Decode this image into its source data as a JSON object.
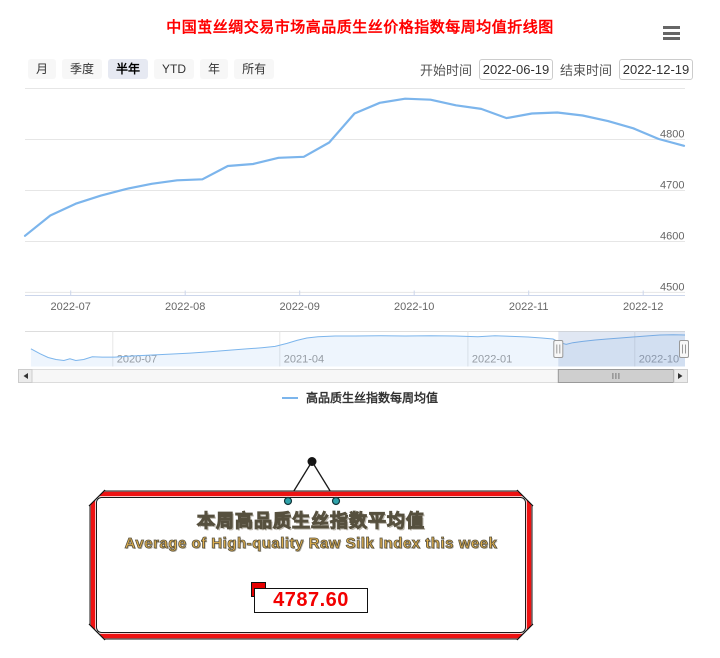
{
  "page": {
    "title": "中国茧丝绸交易市场高品质生丝价格指数每周均值折线图",
    "title_color": "#ff0000"
  },
  "menu": {
    "icon": "hamburger-icon"
  },
  "toolbar": {
    "range_buttons": [
      {
        "label": "月",
        "selected": false
      },
      {
        "label": "季度",
        "selected": false
      },
      {
        "label": "半年",
        "selected": true
      },
      {
        "label": "YTD",
        "selected": false
      },
      {
        "label": "年",
        "selected": false
      },
      {
        "label": "所有",
        "selected": false
      }
    ],
    "start_label": "开始时间",
    "start_value": "2022-06-19",
    "end_label": "结束时间",
    "end_value": "2022-12-19"
  },
  "chart_data": [
    {
      "type": "line",
      "title": "中国茧丝绸交易市场高品质生丝价格指数每周均值折线图",
      "series": [
        {
          "name": "高品质生丝指数每周均值",
          "color": "#7cb5ec",
          "x": [
            "2022-06-19",
            "2022-06-26",
            "2022-07-03",
            "2022-07-10",
            "2022-07-17",
            "2022-07-24",
            "2022-07-31",
            "2022-08-07",
            "2022-08-14",
            "2022-08-21",
            "2022-08-28",
            "2022-09-04",
            "2022-09-11",
            "2022-09-18",
            "2022-09-25",
            "2022-10-02",
            "2022-10-09",
            "2022-10-16",
            "2022-10-23",
            "2022-10-30",
            "2022-11-06",
            "2022-11-13",
            "2022-11-20",
            "2022-11-27",
            "2022-12-04",
            "2022-12-11",
            "2022-12-18"
          ],
          "values": [
            4611,
            4651,
            4674,
            4690,
            4703,
            4713,
            4720,
            4722,
            4748,
            4752,
            4764,
            4766,
            4794,
            4851,
            4872,
            4880,
            4878,
            4867,
            4860,
            4842,
            4851,
            4853,
            4847,
            4836,
            4822,
            4801,
            4787.6
          ]
        }
      ],
      "xtick_labels": [
        "2022-07",
        "2022-08",
        "2022-09",
        "2022-10",
        "2022-11",
        "2022-12"
      ],
      "ytick_labels": [
        "4500",
        "4600",
        "4700",
        "4800"
      ],
      "grid_values": [
        4500,
        4600,
        4700,
        4800,
        4900
      ],
      "ylim": [
        4494,
        4900
      ],
      "grid": true,
      "yaxis_side": "right",
      "legend_position": "bottom"
    },
    {
      "type": "area",
      "role": "navigator",
      "series_color": "#7cb5ec",
      "xticks": [
        {
          "label": "2020-07",
          "f": 0.133
        },
        {
          "label": "2021-04",
          "f": 0.386
        },
        {
          "label": "2022-01",
          "f": 0.671
        },
        {
          "label": "2022-10",
          "f": 0.924
        }
      ],
      "points": [
        [
          0.009,
          0.5
        ],
        [
          0.023,
          0.65
        ],
        [
          0.035,
          0.76
        ],
        [
          0.047,
          0.82
        ],
        [
          0.059,
          0.85
        ],
        [
          0.068,
          0.8
        ],
        [
          0.077,
          0.85
        ],
        [
          0.089,
          0.82
        ],
        [
          0.102,
          0.74
        ],
        [
          0.117,
          0.75
        ],
        [
          0.136,
          0.75
        ],
        [
          0.159,
          0.72
        ],
        [
          0.189,
          0.69
        ],
        [
          0.22,
          0.66
        ],
        [
          0.25,
          0.63
        ],
        [
          0.28,
          0.59
        ],
        [
          0.311,
          0.54
        ],
        [
          0.338,
          0.5
        ],
        [
          0.359,
          0.47
        ],
        [
          0.379,
          0.43
        ],
        [
          0.397,
          0.34
        ],
        [
          0.412,
          0.25
        ],
        [
          0.427,
          0.18
        ],
        [
          0.444,
          0.14
        ],
        [
          0.47,
          0.12
        ],
        [
          0.5,
          0.12
        ],
        [
          0.538,
          0.11
        ],
        [
          0.576,
          0.12
        ],
        [
          0.614,
          0.11
        ],
        [
          0.652,
          0.12
        ],
        [
          0.686,
          0.14
        ],
        [
          0.712,
          0.11
        ],
        [
          0.738,
          0.13
        ],
        [
          0.762,
          0.15
        ],
        [
          0.783,
          0.18
        ],
        [
          0.8,
          0.21
        ],
        [
          0.811,
          0.32
        ],
        [
          0.82,
          0.37
        ],
        [
          0.83,
          0.32
        ],
        [
          0.845,
          0.28
        ],
        [
          0.864,
          0.24
        ],
        [
          0.882,
          0.21
        ],
        [
          0.902,
          0.18
        ],
        [
          0.921,
          0.15
        ],
        [
          0.941,
          0.12
        ],
        [
          0.962,
          0.09
        ],
        [
          0.982,
          0.085
        ],
        [
          1.0,
          0.09
        ]
      ],
      "selected_range": [
        0.808,
        1.0
      ],
      "selected_dates": [
        "2022-06-19",
        "2022-12-19"
      ]
    }
  ],
  "legend": {
    "label": "高品质生丝指数每周均值",
    "marker_color": "#7cb5ec"
  },
  "card": {
    "title": "本周高品质生丝指数平均值",
    "subtitle": "Average of High-quality Raw Silk Index this week",
    "value": "4787.60",
    "frame_color": "#ed1212",
    "text_gold": "#e0b04e",
    "value_color": "#f20000",
    "pin_color": "#2fa3ab"
  },
  "colors": {
    "grid": "#e6e6e6",
    "axis_line": "#ccd6eb",
    "axis_label": "#666666",
    "nav_label": "#999999",
    "mask": "rgba(102,133,194,0.2)",
    "area_fill": "rgba(124,181,236,0.13)",
    "line": "#7cb5ec"
  }
}
